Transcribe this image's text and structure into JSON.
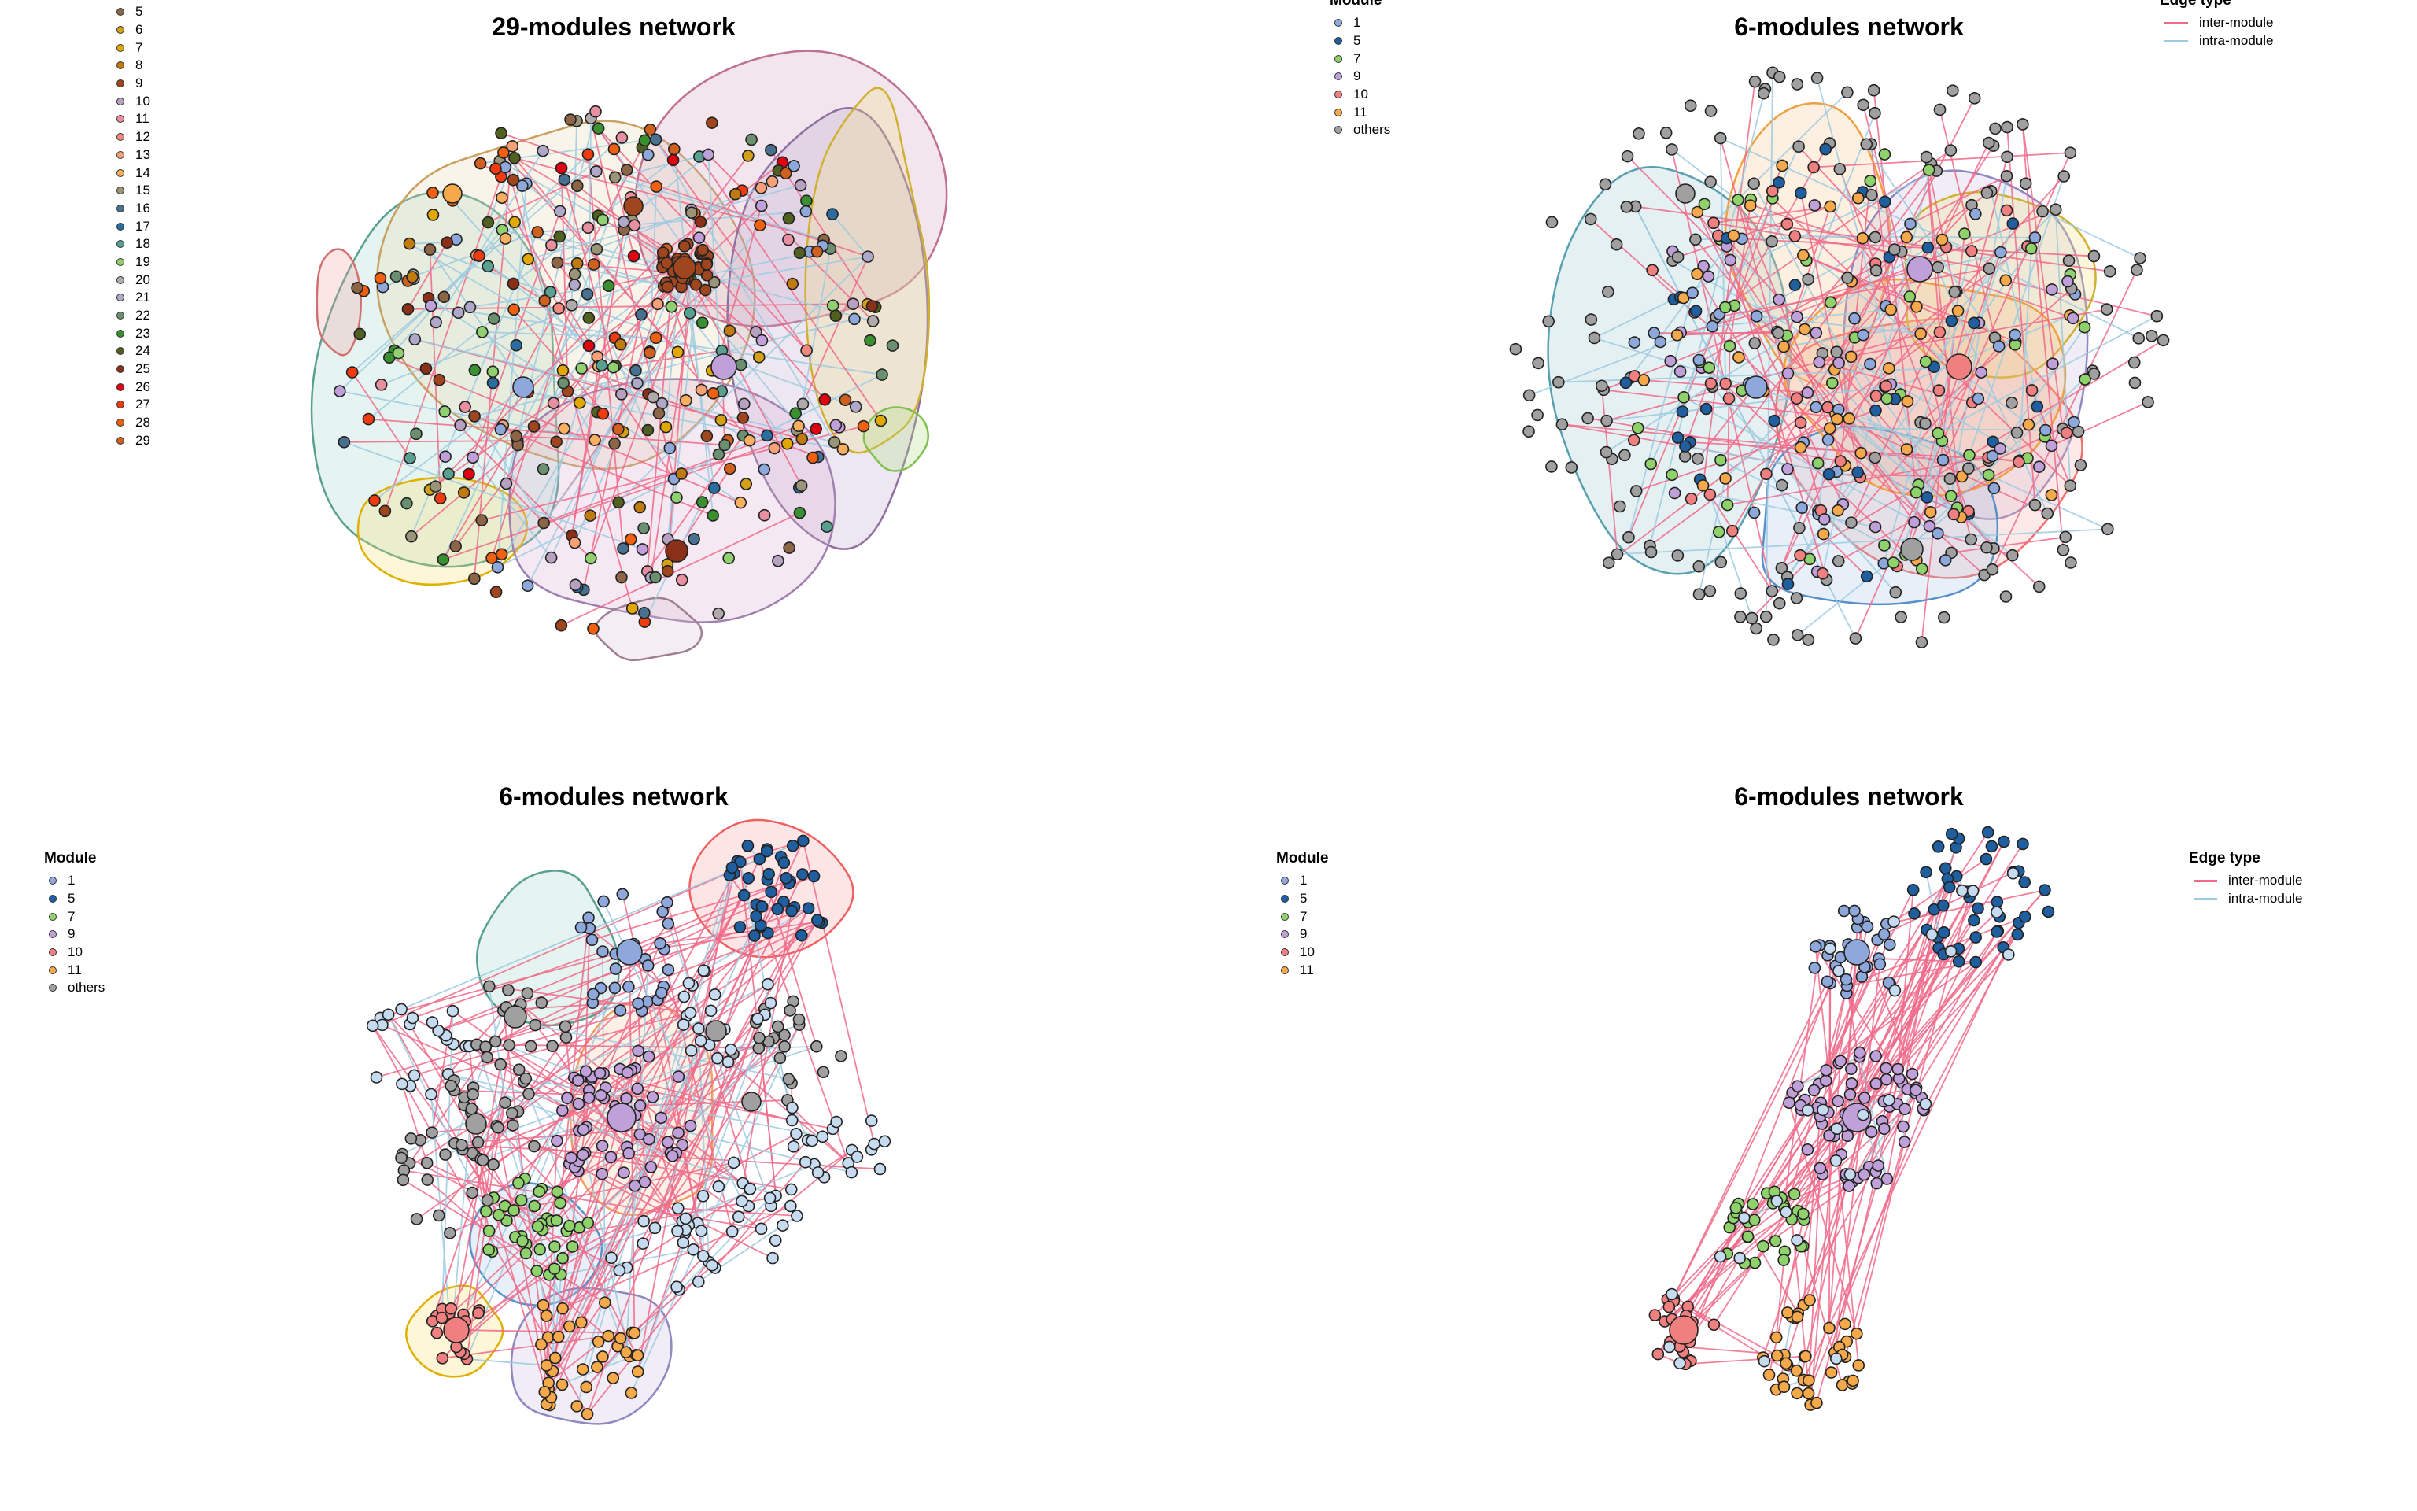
{
  "panels": [
    {
      "title": "29-modules network",
      "legend": {
        "items": [
          {
            "label": "5",
            "color": "#8c6446"
          },
          {
            "label": "6",
            "color": "#d4a017"
          },
          {
            "label": "7",
            "color": "#e0a800"
          },
          {
            "label": "8",
            "color": "#c07a10"
          },
          {
            "label": "9",
            "color": "#a0461e"
          },
          {
            "label": "10",
            "color": "#b8a0c0"
          },
          {
            "label": "11",
            "color": "#e890a0"
          },
          {
            "label": "12",
            "color": "#f08a80"
          },
          {
            "label": "13",
            "color": "#f6a078"
          },
          {
            "label": "14",
            "color": "#f8b060"
          },
          {
            "label": "15",
            "color": "#9a9478"
          },
          {
            "label": "16",
            "color": "#4a7090"
          },
          {
            "label": "17",
            "color": "#2a6ea0"
          },
          {
            "label": "18",
            "color": "#5aa090"
          },
          {
            "label": "19",
            "color": "#90d070"
          },
          {
            "label": "20",
            "color": "#b0aaaa"
          },
          {
            "label": "21",
            "color": "#b0a8c8"
          },
          {
            "label": "22",
            "color": "#6a9070"
          },
          {
            "label": "23",
            "color": "#3a9030"
          },
          {
            "label": "24",
            "color": "#506020"
          },
          {
            "label": "25",
            "color": "#8a3018"
          },
          {
            "label": "26",
            "color": "#e00010"
          },
          {
            "label": "27",
            "color": "#f03a10"
          },
          {
            "label": "28",
            "color": "#f06010"
          },
          {
            "label": "29",
            "color": "#d06020"
          }
        ]
      }
    },
    {
      "title": "6-modules network",
      "legend": {
        "title": "Module",
        "items": [
          {
            "label": "1",
            "color": "#8fa8dc"
          },
          {
            "label": "5",
            "color": "#1f5fa0"
          },
          {
            "label": "7",
            "color": "#8fd16a"
          },
          {
            "label": "9",
            "color": "#c0a0d8"
          },
          {
            "label": "10",
            "color": "#f08080"
          },
          {
            "label": "11",
            "color": "#f5a94a"
          },
          {
            "label": "others",
            "color": "#a0a0a0"
          }
        ]
      },
      "edge_legend": {
        "title": "Edge type",
        "items": [
          {
            "label": "inter-module",
            "color": "#f06a8a"
          },
          {
            "label": "intra-module",
            "color": "#9ecae1"
          }
        ]
      }
    },
    {
      "title": "6-modules network",
      "legend": {
        "title": "Module",
        "items": [
          {
            "label": "1",
            "color": "#8fa8dc"
          },
          {
            "label": "5",
            "color": "#1f5fa0"
          },
          {
            "label": "7",
            "color": "#8fd16a"
          },
          {
            "label": "9",
            "color": "#c0a0d8"
          },
          {
            "label": "10",
            "color": "#f08080"
          },
          {
            "label": "11",
            "color": "#f5a94a"
          },
          {
            "label": "others",
            "color": "#a0a0a0"
          }
        ]
      }
    },
    {
      "title": "6-modules network",
      "legend": {
        "title": "Module",
        "items": [
          {
            "label": "1",
            "color": "#8fa8dc"
          },
          {
            "label": "5",
            "color": "#1f5fa0"
          },
          {
            "label": "7",
            "color": "#8fd16a"
          },
          {
            "label": "9",
            "color": "#c0a0d8"
          },
          {
            "label": "10",
            "color": "#f08080"
          },
          {
            "label": "11",
            "color": "#f5a94a"
          }
        ]
      },
      "edge_legend": {
        "title": "Edge type",
        "items": [
          {
            "label": "inter-module",
            "color": "#f06a8a"
          },
          {
            "label": "intra-module",
            "color": "#9ecae1"
          }
        ]
      }
    }
  ]
}
